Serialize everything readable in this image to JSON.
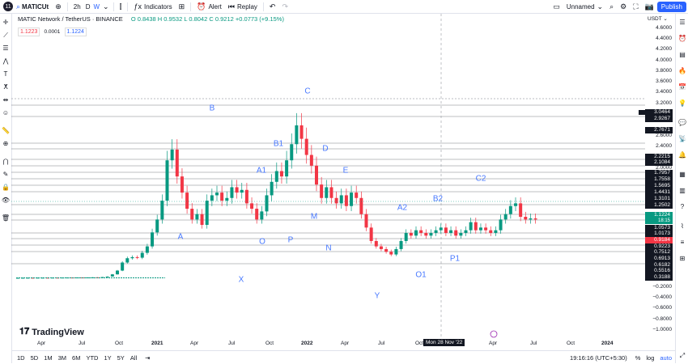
{
  "toolbar": {
    "symbol": "MATICUt",
    "avatar_text": "11",
    "interval": "2h",
    "interval_d": "D",
    "interval_w": "W",
    "indicators_label": "Indicators",
    "alert_label": "Alert",
    "replay_label": "Replay",
    "layout_name": "Unnamed",
    "publish_label": "Publish"
  },
  "legend": {
    "title": "MATIC Network / TetherUS · BINANCE",
    "o": "O 0.8438",
    "h": "H 0.9532",
    "l": "L 0.8042",
    "c": "C 0.9212",
    "change": "+0.0773 (+9.15%)",
    "sell_price": "1.1223",
    "spread": "0.0001",
    "buy_price": "1.1224"
  },
  "price_axis": {
    "currency": "USDT",
    "ticks": [
      "4.6000",
      "4.4000",
      "4.2000",
      "4.0000",
      "3.8000",
      "3.6000",
      "3.4000",
      "3.2000",
      "2.6000",
      "2.4000",
      "2.0000",
      "−0.2000",
      "−0.4000",
      "−0.6000",
      "−0.8000",
      "−1.0000"
    ],
    "level_labels": [
      "3.0464",
      "2.9267",
      "2.7671",
      "2.2215",
      "2.1084",
      "1.7957",
      "1.7558",
      "1.5695",
      "1.4431",
      "1.3101",
      "1.2502",
      "1.1224",
      "1.0573",
      "1.0173",
      "0.9223",
      "0.7512",
      "0.6913",
      "0.6182",
      "0.5516",
      "0.3188"
    ],
    "current_price": "1.1224",
    "current_sub": "18:15",
    "low_price": "0.9184"
  },
  "time_axis": {
    "labels": [
      "Apr",
      "Jul",
      "Oct",
      "2021",
      "Apr",
      "Jul",
      "Oct",
      "2022",
      "Apr",
      "Jul",
      "Oct",
      "Jul",
      "Oct",
      "2024",
      "Apr"
    ],
    "crosshair_date": "Mon 28 Nov '22"
  },
  "waves": [
    "A",
    "B",
    "C",
    "B1",
    "A1",
    "D",
    "E",
    "M",
    "N",
    "O",
    "P",
    "X",
    "Y",
    "O1",
    "P1",
    "A2",
    "B2",
    "C2"
  ],
  "bottom": {
    "ranges": [
      "1D",
      "5D",
      "1M",
      "3M",
      "6M",
      "YTD",
      "1Y",
      "5Y",
      "All"
    ],
    "time": "19:16:16 (UTC+5:30)",
    "percent": "%",
    "log": "log",
    "auto": "auto"
  },
  "watermark": "TradingView",
  "colors": {
    "up": "#089981",
    "down": "#f23645",
    "accent": "#2962ff",
    "wave": "#2962ff"
  },
  "chart_data": {
    "type": "candlestick",
    "symbol": "MATICUSDT",
    "period_start": "2020",
    "period_end": "2023-04",
    "closes": [
      0.015,
      0.016,
      0.017,
      0.016,
      0.018,
      0.018,
      0.017,
      0.019,
      0.018,
      0.02,
      0.021,
      0.02,
      0.022,
      0.021,
      0.023,
      0.025,
      0.024,
      0.03,
      0.04,
      0.08,
      0.15,
      0.3,
      0.38,
      0.4,
      0.39,
      0.48,
      0.6,
      0.86,
      1.1,
      1.45,
      2.2,
      2.4,
      1.9,
      1.6,
      1.3,
      1.1,
      1.2,
      1.0,
      1.45,
      1.55,
      1.6,
      1.45,
      1.5,
      1.7,
      1.6,
      1.65,
      1.4,
      1.3,
      1.1,
      1.25,
      1.55,
      1.8,
      2.0,
      1.9,
      2.2,
      2.5,
      2.85,
      2.6,
      2.3,
      2.1,
      1.75,
      1.5,
      1.7,
      1.5,
      1.4,
      1.55,
      1.35,
      1.6,
      1.5,
      1.2,
      0.95,
      0.7,
      0.6,
      0.55,
      0.5,
      0.45,
      0.55,
      0.7,
      0.85,
      0.8,
      0.9,
      0.85,
      0.8,
      0.85,
      0.9,
      0.95,
      0.85,
      0.9,
      0.8,
      0.85,
      0.9,
      1.05,
      0.9,
      0.95,
      0.9,
      0.85,
      0.9,
      1.1,
      1.2,
      1.35,
      1.4,
      1.15,
      1.1,
      1.12,
      1.1
    ]
  }
}
